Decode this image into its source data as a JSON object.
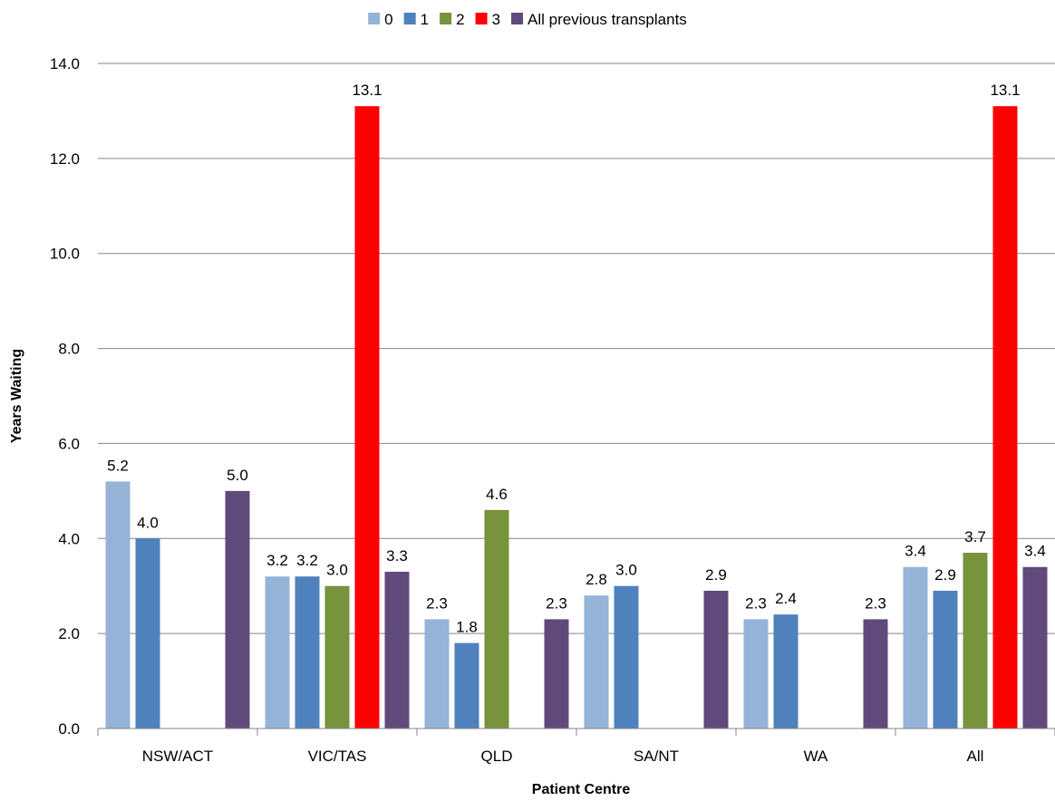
{
  "chart_data": {
    "type": "bar",
    "title": "",
    "xlabel": "Patient Centre",
    "ylabel": "Years Waiting",
    "ylim": [
      0,
      14
    ],
    "yticks": [
      "0.0",
      "2.0",
      "4.0",
      "6.0",
      "8.0",
      "10.0",
      "12.0",
      "14.0"
    ],
    "grid": true,
    "legend_position": "top",
    "categories": [
      "NSW/ACT",
      "VIC/TAS",
      "QLD",
      "SA/NT",
      "WA",
      "All"
    ],
    "series": [
      {
        "name": "0",
        "color": "#95B3D7",
        "values": [
          5.2,
          3.2,
          2.3,
          2.8,
          2.3,
          3.4
        ],
        "labels": [
          "5.2",
          "3.2",
          "2.3",
          "2.8",
          "2.3",
          "3.4"
        ]
      },
      {
        "name": "1",
        "color": "#4F81BD",
        "values": [
          4.0,
          3.2,
          1.8,
          3.0,
          2.4,
          2.9
        ],
        "labels": [
          "4.0",
          "3.2",
          "1.8",
          "3.0",
          "2.4",
          "2.9"
        ]
      },
      {
        "name": "2",
        "color": "#77933C",
        "values": [
          null,
          3.0,
          4.6,
          null,
          null,
          3.7
        ],
        "labels": [
          null,
          "3.0",
          "4.6",
          null,
          null,
          "3.7"
        ]
      },
      {
        "name": "3",
        "color": "#FF0000",
        "values": [
          null,
          13.1,
          null,
          null,
          null,
          13.1
        ],
        "labels": [
          null,
          "13.1",
          null,
          null,
          null,
          "13.1"
        ]
      },
      {
        "name": "All previous transplants",
        "color": "#604A7B",
        "values": [
          5.0,
          3.3,
          2.3,
          2.9,
          2.3,
          3.4
        ],
        "labels": [
          "5.0",
          "3.3",
          "2.3",
          "2.9",
          "2.3",
          "3.4"
        ]
      }
    ]
  }
}
